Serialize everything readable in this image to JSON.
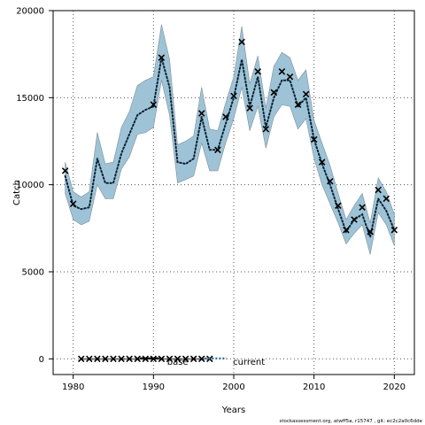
{
  "chart_data": {
    "type": "line",
    "xlabel": "Years",
    "ylabel": "Catch",
    "xlim": [
      1977.5,
      2022.5
    ],
    "ylim": [
      -900,
      20000
    ],
    "x_ticks": [
      1980,
      1990,
      2000,
      2010,
      2020
    ],
    "y_ticks": [
      0,
      5000,
      10000,
      15000,
      20000
    ],
    "x_tick_labels": [
      "1980",
      "1990",
      "2000",
      "2010",
      "2020"
    ],
    "y_tick_labels": [
      "0",
      "5000",
      "10000",
      "15000",
      "20000"
    ],
    "grid": true,
    "legend_position": "bottom-center",
    "colors": {
      "current": "#2a6f97",
      "band": "#9ec3d6",
      "band_edge": "#7f8f99",
      "base": "#000000"
    },
    "series": [
      {
        "name": "base",
        "style": "cross-marker-line",
        "x": [
          1981,
          1982,
          1983,
          1984,
          1985,
          1986,
          1987,
          1988,
          1989,
          1990,
          1991,
          1992,
          1993,
          1994,
          1995,
          1996,
          1997
        ],
        "y": [
          0,
          0,
          0,
          0,
          0,
          0,
          0,
          0,
          0,
          0,
          0,
          0,
          0,
          0,
          0,
          0,
          0
        ]
      },
      {
        "name": "current",
        "style": "dotted-line-with-confidence-band",
        "x": [
          1979,
          1980,
          1981,
          1982,
          1983,
          1984,
          1985,
          1986,
          1987,
          1988,
          1989,
          1990,
          1991,
          1992,
          1993,
          1994,
          1995,
          1996,
          1997,
          1998,
          1999,
          2000,
          2001,
          2002,
          2003,
          2004,
          2005,
          2006,
          2007,
          2008,
          2009,
          2010,
          2011,
          2012,
          2013,
          2014,
          2015,
          2016,
          2017,
          2018,
          2019,
          2020
        ],
        "y": [
          10500,
          8800,
          8600,
          8700,
          11500,
          10100,
          10100,
          11800,
          12900,
          14000,
          14300,
          14500,
          17300,
          15600,
          11300,
          11200,
          11500,
          13900,
          12000,
          12000,
          13500,
          15000,
          17200,
          14500,
          16200,
          13300,
          15000,
          16000,
          16000,
          14500,
          15000,
          12600,
          11200,
          10000,
          8600,
          7300,
          8000,
          8300,
          7000,
          9200,
          8500,
          7400
        ],
        "lower": [
          9500,
          8000,
          7700,
          7900,
          10000,
          9200,
          9200,
          10900,
          11600,
          12900,
          13000,
          13300,
          16000,
          14000,
          10100,
          10300,
          10500,
          12400,
          10800,
          10800,
          12400,
          13800,
          15600,
          13100,
          14500,
          12100,
          13900,
          14600,
          14500,
          13200,
          13800,
          11500,
          10000,
          8900,
          7800,
          6600,
          7200,
          7700,
          6000,
          8400,
          7700,
          6500
        ],
        "upper": [
          11300,
          9600,
          9300,
          9600,
          13000,
          11200,
          11300,
          13300,
          14200,
          15700,
          16000,
          16200,
          19200,
          17200,
          12300,
          12500,
          12800,
          15600,
          13200,
          13100,
          14700,
          16200,
          19100,
          15800,
          17400,
          14400,
          16800,
          17600,
          17300,
          16000,
          16600,
          13700,
          12400,
          11100,
          9500,
          8000,
          8800,
          9500,
          7800,
          10400,
          9600,
          8300
        ]
      },
      {
        "name": "markers",
        "style": "cross-marker",
        "x": [
          1979,
          1980,
          1990,
          1991,
          1996,
          1998,
          1999,
          2000,
          2001,
          2002,
          2003,
          2004,
          2005,
          2006,
          2007,
          2008,
          2009,
          2010,
          2011,
          2012,
          2013,
          2014,
          2015,
          2016,
          2017,
          2018,
          2019,
          2020
        ],
        "y": [
          10800,
          8900,
          14600,
          17300,
          14100,
          12000,
          13900,
          15100,
          18200,
          14400,
          16500,
          13200,
          15300,
          16500,
          16200,
          14600,
          15200,
          12600,
          11300,
          10200,
          8800,
          7400,
          8000,
          8700,
          7300,
          9700,
          9200,
          7400
        ]
      }
    ],
    "legend": [
      {
        "label": "base"
      },
      {
        "label": "current"
      }
    ],
    "credit": "stockassessment.org, atwff5a, r15747 , git: ec2c2a0c6dde"
  }
}
